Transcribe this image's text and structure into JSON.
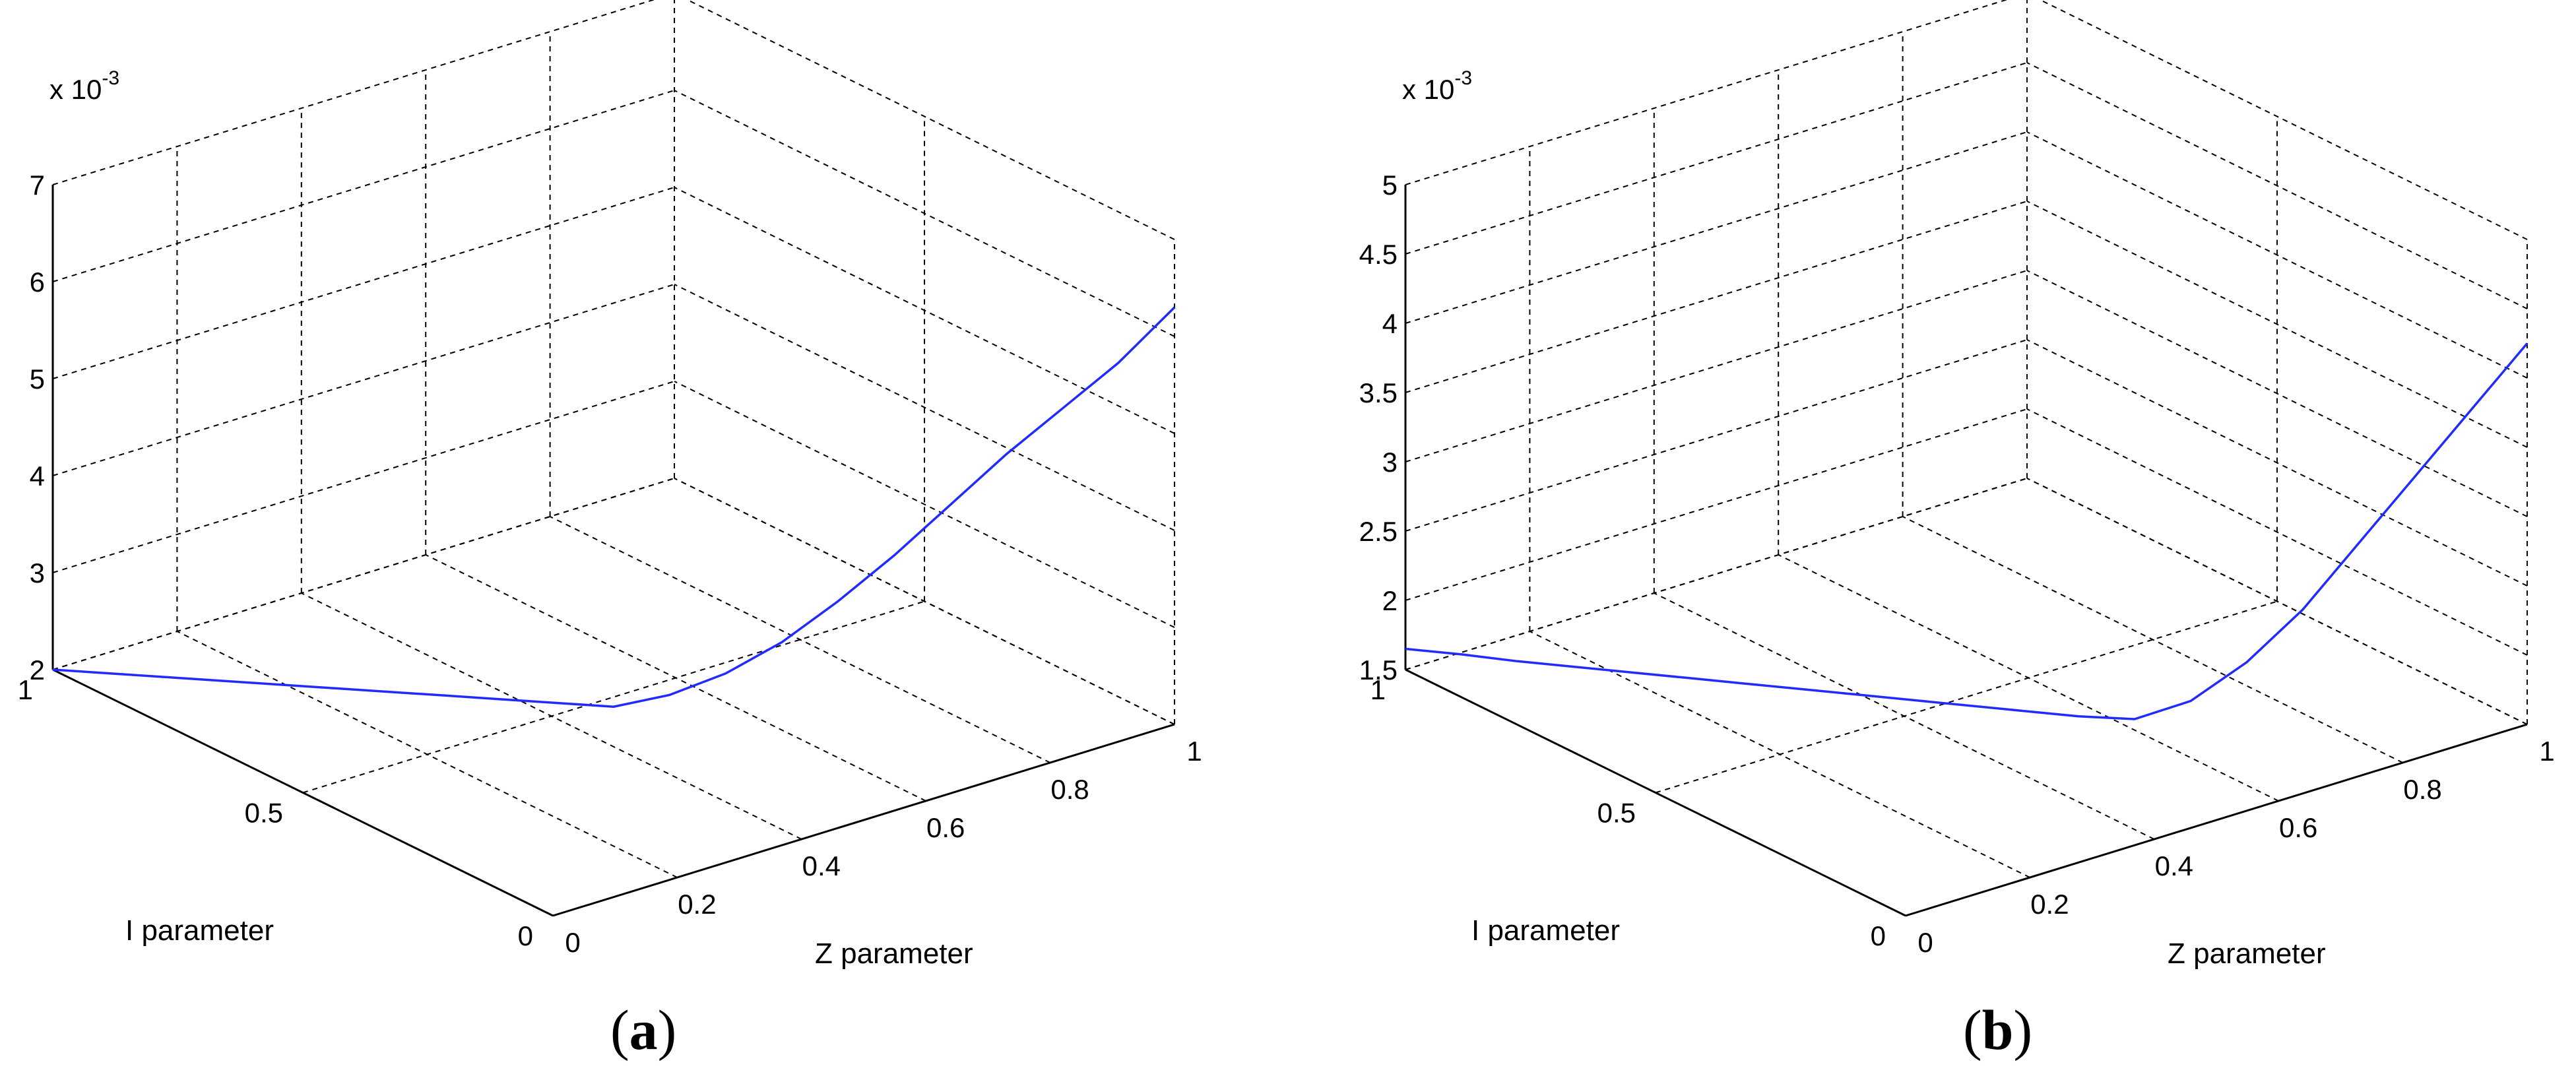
{
  "chart_data": [
    {
      "type": "line",
      "panel_label": "(a)",
      "caption_letter": "a",
      "xlabel": "Z parameter",
      "ylabel": "I parameter",
      "zlabel": "",
      "z_multiplier": "x 10",
      "z_multiplier_exp": "-3",
      "x_ticks": [
        "0",
        "0.2",
        "0.4",
        "0.6",
        "0.8",
        "1"
      ],
      "y_ticks": [
        "0",
        "0.5",
        "1"
      ],
      "z_ticks": [
        "2",
        "3",
        "4",
        "5",
        "6",
        "7"
      ],
      "xlim": [
        0,
        1
      ],
      "ylim": [
        0,
        1
      ],
      "zlim": [
        2,
        7
      ],
      "grid": true,
      "series": [
        {
          "color": "#1f2bff",
          "points": [
            {
              "x": 0.0,
              "y": 1.0,
              "z": 2.0
            },
            {
              "x": 0.05,
              "y": 0.95,
              "z": 1.99
            },
            {
              "x": 0.1,
              "y": 0.9,
              "z": 1.98
            },
            {
              "x": 0.15,
              "y": 0.85,
              "z": 1.97
            },
            {
              "x": 0.2,
              "y": 0.8,
              "z": 1.96
            },
            {
              "x": 0.25,
              "y": 0.75,
              "z": 1.95
            },
            {
              "x": 0.3,
              "y": 0.7,
              "z": 1.94
            },
            {
              "x": 0.35,
              "y": 0.65,
              "z": 1.93
            },
            {
              "x": 0.4,
              "y": 0.6,
              "z": 1.92
            },
            {
              "x": 0.45,
              "y": 0.55,
              "z": 1.91
            },
            {
              "x": 0.5,
              "y": 0.5,
              "z": 1.9
            },
            {
              "x": 0.55,
              "y": 0.45,
              "z": 2.05
            },
            {
              "x": 0.6,
              "y": 0.4,
              "z": 2.3
            },
            {
              "x": 0.65,
              "y": 0.35,
              "z": 2.65
            },
            {
              "x": 0.7,
              "y": 0.3,
              "z": 3.1
            },
            {
              "x": 0.75,
              "y": 0.25,
              "z": 3.6
            },
            {
              "x": 0.8,
              "y": 0.2,
              "z": 4.15
            },
            {
              "x": 0.85,
              "y": 0.15,
              "z": 4.7
            },
            {
              "x": 0.9,
              "y": 0.1,
              "z": 5.2
            },
            {
              "x": 0.95,
              "y": 0.05,
              "z": 5.7
            },
            {
              "x": 1.0,
              "y": 0.0,
              "z": 6.3
            }
          ]
        }
      ]
    },
    {
      "type": "line",
      "panel_label": "(b)",
      "caption_letter": "b",
      "xlabel": "Z parameter",
      "ylabel": "I parameter",
      "zlabel": "",
      "z_multiplier": "x 10",
      "z_multiplier_exp": "-3",
      "x_ticks": [
        "0",
        "0.2",
        "0.4",
        "0.6",
        "0.8",
        "1"
      ],
      "y_ticks": [
        "0",
        "0.5",
        "1"
      ],
      "z_ticks": [
        "1.5",
        "2",
        "2.5",
        "3",
        "3.5",
        "4",
        "4.5",
        "5"
      ],
      "xlim": [
        0,
        1
      ],
      "ylim": [
        0,
        1
      ],
      "zlim": [
        1.5,
        5
      ],
      "grid": true,
      "series": [
        {
          "color": "#1f2bff",
          "points": [
            {
              "x": 0.0,
              "y": 1.0,
              "z": 1.65
            },
            {
              "x": 0.05,
              "y": 0.95,
              "z": 1.63
            },
            {
              "x": 0.1,
              "y": 0.9,
              "z": 1.6
            },
            {
              "x": 0.15,
              "y": 0.85,
              "z": 1.58
            },
            {
              "x": 0.2,
              "y": 0.8,
              "z": 1.56
            },
            {
              "x": 0.25,
              "y": 0.75,
              "z": 1.54
            },
            {
              "x": 0.3,
              "y": 0.7,
              "z": 1.52
            },
            {
              "x": 0.35,
              "y": 0.65,
              "z": 1.5
            },
            {
              "x": 0.4,
              "y": 0.6,
              "z": 1.48
            },
            {
              "x": 0.45,
              "y": 0.55,
              "z": 1.46
            },
            {
              "x": 0.5,
              "y": 0.5,
              "z": 1.44
            },
            {
              "x": 0.55,
              "y": 0.45,
              "z": 1.42
            },
            {
              "x": 0.6,
              "y": 0.4,
              "z": 1.4
            },
            {
              "x": 0.65,
              "y": 0.35,
              "z": 1.4
            },
            {
              "x": 0.7,
              "y": 0.3,
              "z": 1.55
            },
            {
              "x": 0.75,
              "y": 0.25,
              "z": 1.85
            },
            {
              "x": 0.8,
              "y": 0.2,
              "z": 2.25
            },
            {
              "x": 0.85,
              "y": 0.15,
              "z": 2.75
            },
            {
              "x": 0.9,
              "y": 0.1,
              "z": 3.25
            },
            {
              "x": 0.95,
              "y": 0.05,
              "z": 3.75
            },
            {
              "x": 1.0,
              "y": 0.0,
              "z": 4.25
            }
          ]
        }
      ]
    }
  ]
}
